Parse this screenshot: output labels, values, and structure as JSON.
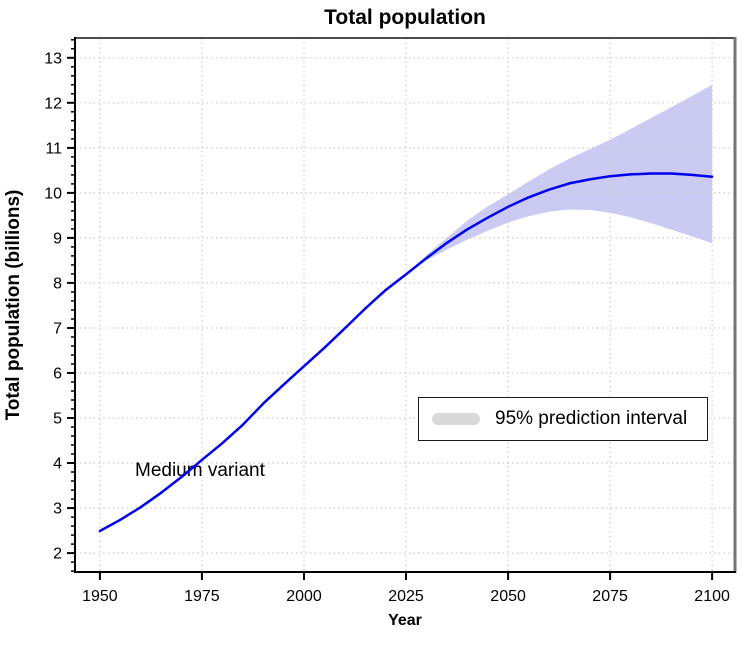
{
  "title": "Total population",
  "axes": {
    "x_label": "Year",
    "y_label": "Total population (billions)"
  },
  "annotation": "Medium variant",
  "legend": {
    "label": "95% prediction interval"
  },
  "colors": {
    "line": "#0000ee",
    "band": "#cacaf2",
    "grid": "#c9c9c9",
    "axis": "#000000",
    "box_top_border": "#4d4d4d",
    "box_right_border": "#757575",
    "legend_swatch": "#d9d9d9",
    "tick": "#000000"
  },
  "chart_data": {
    "type": "line",
    "title": "Total population",
    "xlabel": "Year",
    "ylabel": "Total population (billions)",
    "xlim": [
      1943.9,
      2105.6
    ],
    "ylim": [
      1.58,
      13.44
    ],
    "x_ticks": [
      1950,
      1975,
      2000,
      2025,
      2050,
      2075,
      2100
    ],
    "y_ticks": [
      2,
      3,
      4,
      5,
      6,
      7,
      8,
      9,
      10,
      11,
      12,
      13
    ],
    "y_minor_step": 0.2,
    "grid": "dotted",
    "series": [
      {
        "name": "Medium variant",
        "x": [
          1950,
          1955,
          1960,
          1965,
          1970,
          1975,
          1980,
          1985,
          1990,
          1995,
          2000,
          2005,
          2010,
          2015,
          2020,
          2025,
          2030,
          2035,
          2040,
          2045,
          2050,
          2055,
          2060,
          2065,
          2070,
          2075,
          2080,
          2085,
          2090,
          2095,
          2100
        ],
        "values": [
          2.49,
          2.74,
          3.02,
          3.34,
          3.69,
          4.07,
          4.44,
          4.85,
          5.32,
          5.74,
          6.15,
          6.56,
          6.99,
          7.43,
          7.84,
          8.19,
          8.55,
          8.89,
          9.19,
          9.45,
          9.69,
          9.9,
          10.07,
          10.21,
          10.3,
          10.37,
          10.41,
          10.43,
          10.43,
          10.4,
          10.36
        ]
      }
    ],
    "interval": {
      "name": "95% prediction interval",
      "x": [
        2025,
        2030,
        2035,
        2040,
        2045,
        2050,
        2055,
        2060,
        2065,
        2070,
        2075,
        2080,
        2085,
        2090,
        2095,
        2100
      ],
      "lower": [
        8.19,
        8.5,
        8.74,
        8.96,
        9.16,
        9.34,
        9.48,
        9.58,
        9.63,
        9.62,
        9.56,
        9.46,
        9.33,
        9.18,
        9.04,
        8.88
      ],
      "upper": [
        8.19,
        8.62,
        9.0,
        9.38,
        9.7,
        9.97,
        10.25,
        10.52,
        10.76,
        10.97,
        11.18,
        11.42,
        11.66,
        11.9,
        12.15,
        12.4
      ]
    }
  }
}
